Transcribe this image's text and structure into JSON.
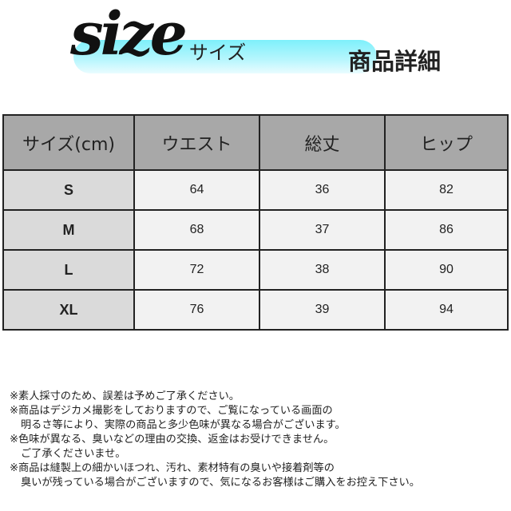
{
  "header": {
    "logo_script": "size",
    "logo_kana": "サイズ",
    "title": "商品詳細",
    "banner_color": "#7ef0fb"
  },
  "table": {
    "columns": [
      "サイズ(cm)",
      "ウエスト",
      "総丈",
      "ヒップ"
    ],
    "rows": [
      {
        "size": "S",
        "waist": "64",
        "length": "36",
        "hip": "82"
      },
      {
        "size": "M",
        "waist": "68",
        "length": "37",
        "hip": "86"
      },
      {
        "size": "L",
        "waist": "72",
        "length": "38",
        "hip": "90"
      },
      {
        "size": "XL",
        "waist": "76",
        "length": "39",
        "hip": "94"
      }
    ]
  },
  "notes": [
    "※素人採寸のため、誤差は予めご了承ください。",
    "※商品はデジカメ撮影をしておりますので、ご覧になっている画面の",
    "明るさ等により、実際の商品と多少色味が異なる場合がございます。",
    "※色味が異なる、臭いなどの理由の交換、返金はお受けできません。",
    "ご了承くださいませ。",
    "※商品は縫製上の細かいほつれ、汚れ、素材特有の臭いや接着剤等の",
    "臭いが残っている場合がございますので、気になるお客様はご購入をお控え下さい。"
  ]
}
